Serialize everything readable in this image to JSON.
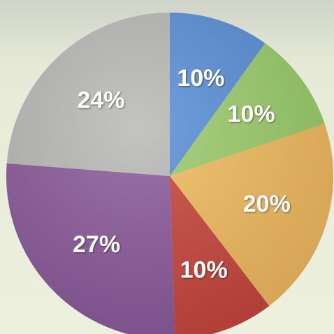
{
  "chart_data": {
    "type": "pie",
    "categories": [
      null,
      null,
      null,
      null,
      null,
      null
    ],
    "values": [
      10,
      10,
      20,
      10,
      27,
      24
    ],
    "value_labels": [
      "10%",
      "10%",
      "20%",
      "10%",
      "27%",
      "24%"
    ],
    "colors": [
      "#5b8fd8",
      "#9ccd6c",
      "#f2bc60",
      "#c8473e",
      "#8c5b9d",
      "#b9bab7"
    ]
  }
}
